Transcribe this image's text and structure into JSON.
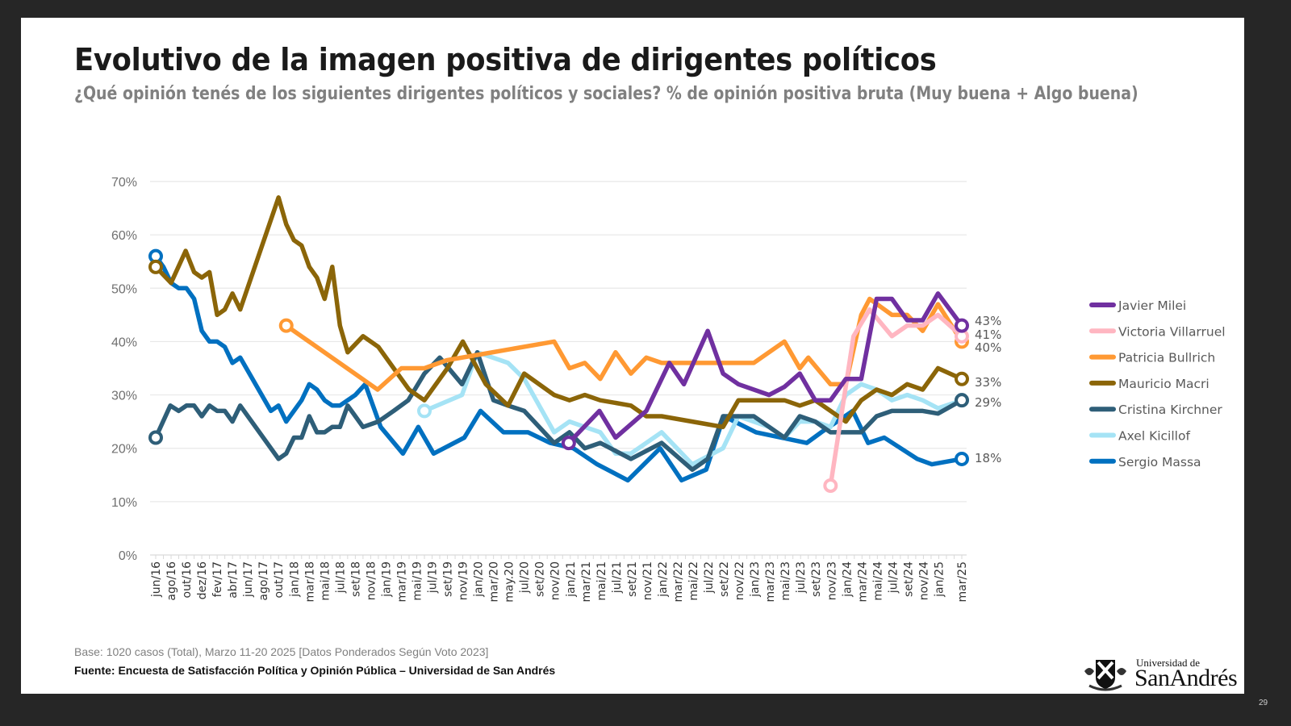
{
  "slide": {
    "title": "Evolutivo de la imagen positiva de dirigentes políticos",
    "subtitle": "¿Qué opinión tenés de los siguientes dirigentes políticos y sociales? % de opinión positiva bruta (Muy buena + Algo buena)",
    "base_note": "Base: 1020 casos (Total), Marzo 11-20 2025 [Datos Ponderados Según Voto 2023]",
    "source_note": "Fuente: Encuesta de Satisfacción Política y Opinión Pública – Universidad de San Andrés",
    "logo_small": "Universidad de",
    "logo_big": "SanAndrés",
    "page_number": "29"
  },
  "chart_data": {
    "type": "line",
    "title": "Evolutivo de la imagen positiva de dirigentes políticos",
    "xlabel": "",
    "ylabel": "",
    "ylim": [
      0,
      70
    ],
    "y_ticks": [
      "0%",
      "10%",
      "20%",
      "30%",
      "40%",
      "50%",
      "60%",
      "70%"
    ],
    "grid": true,
    "legend_position": "right",
    "x_unit": "months since jun/16",
    "x_range": [
      0,
      105
    ],
    "x_tick_labels": [
      "jun/16",
      "ago/16",
      "out/16",
      "dez/16",
      "fev/17",
      "abr/17",
      "jun/17",
      "ago/17",
      "out/17",
      "jan/18",
      "mar/18",
      "mai/18",
      "jul/18",
      "set/18",
      "nov/18",
      "jan/19",
      "mar/19",
      "mai/19",
      "jul/19",
      "set/19",
      "nov/19",
      "jan/20",
      "mar/20",
      "may.20",
      "jul/20",
      "set/20",
      "nov/20",
      "jan/21",
      "mar/21",
      "mai/21",
      "jul/21",
      "set/21",
      "nov/21",
      "jan/22",
      "mar/22",
      "mai/22",
      "jul/22",
      "set/22",
      "nov/22",
      "jan/23",
      "mar/23",
      "mai/23",
      "jul/23",
      "set/23",
      "nov/23",
      "jan/24",
      "mar/24",
      "mai/24",
      "jul/24",
      "set/24",
      "nov/24",
      "jan/25",
      "mar/25"
    ],
    "series": [
      {
        "name": "Javier Milei",
        "color": "#7030A0",
        "end_label": "43%",
        "points": [
          [
            53.8,
            21
          ],
          [
            57.8,
            27
          ],
          [
            59.9,
            22
          ],
          [
            63.9,
            27
          ],
          [
            66.9,
            36
          ],
          [
            68.8,
            32
          ],
          [
            71.9,
            42
          ],
          [
            73.9,
            34
          ],
          [
            75.9,
            32
          ],
          [
            79.9,
            30
          ],
          [
            81.9,
            31.5
          ],
          [
            83.9,
            34
          ],
          [
            85.9,
            29
          ],
          [
            87.9,
            29
          ],
          [
            89.9,
            33
          ],
          [
            91.9,
            33
          ],
          [
            93.9,
            48
          ],
          [
            95.9,
            48
          ],
          [
            97.9,
            44
          ],
          [
            99.9,
            44
          ],
          [
            101.9,
            49
          ],
          [
            105,
            43
          ]
        ]
      },
      {
        "name": "Victoria Villarruel",
        "color": "#FFB6C1",
        "end_label": "41%",
        "points": [
          [
            87.9,
            13
          ],
          [
            90.9,
            41
          ],
          [
            93.0,
            46
          ],
          [
            95.9,
            41
          ],
          [
            97.9,
            43
          ],
          [
            99.9,
            43
          ],
          [
            101.9,
            45
          ],
          [
            105,
            41
          ]
        ]
      },
      {
        "name": "Patricia Bullrich",
        "color": "#FF9933",
        "end_label": "40%",
        "points": [
          [
            17.0,
            43
          ],
          [
            28.9,
            31
          ],
          [
            32.0,
            35
          ],
          [
            35.0,
            35
          ],
          [
            37.9,
            36.5
          ],
          [
            41.9,
            37.5
          ],
          [
            51.9,
            40
          ],
          [
            53.9,
            35
          ],
          [
            55.9,
            36
          ],
          [
            57.9,
            33
          ],
          [
            59.9,
            38
          ],
          [
            61.9,
            34
          ],
          [
            63.9,
            37
          ],
          [
            65.9,
            36
          ],
          [
            69.9,
            36
          ],
          [
            73.9,
            36
          ],
          [
            77.9,
            36
          ],
          [
            81.9,
            40
          ],
          [
            83.9,
            35
          ],
          [
            85.0,
            37
          ],
          [
            87.9,
            32
          ],
          [
            89.9,
            32
          ],
          [
            91.9,
            45
          ],
          [
            93.0,
            48
          ],
          [
            95.9,
            45
          ],
          [
            97.9,
            45
          ],
          [
            99.9,
            42
          ],
          [
            101.9,
            47
          ],
          [
            105,
            40
          ]
        ]
      },
      {
        "name": "Mauricio Macri",
        "color": "#8B6508",
        "end_label": "33%",
        "points": [
          [
            0,
            54
          ],
          [
            2.0,
            51
          ],
          [
            3.9,
            57
          ],
          [
            5.0,
            53
          ],
          [
            6.0,
            52
          ],
          [
            7.0,
            53
          ],
          [
            8.0,
            45
          ],
          [
            9.0,
            46
          ],
          [
            10.0,
            49
          ],
          [
            11.0,
            46
          ],
          [
            16.0,
            67
          ],
          [
            17.0,
            62
          ],
          [
            18.0,
            59
          ],
          [
            19.0,
            58
          ],
          [
            20.0,
            54
          ],
          [
            21.0,
            52
          ],
          [
            22.0,
            48
          ],
          [
            23.0,
            54
          ],
          [
            24.0,
            43
          ],
          [
            25.0,
            38
          ],
          [
            27.0,
            41
          ],
          [
            29.0,
            39
          ],
          [
            31.0,
            35
          ],
          [
            33.0,
            31
          ],
          [
            35.0,
            29
          ],
          [
            38.0,
            35
          ],
          [
            40.0,
            40
          ],
          [
            43.0,
            32
          ],
          [
            45.9,
            28
          ],
          [
            48.0,
            34
          ],
          [
            51.9,
            30
          ],
          [
            53.9,
            29
          ],
          [
            55.9,
            30
          ],
          [
            57.9,
            29
          ],
          [
            61.9,
            28
          ],
          [
            63.9,
            26
          ],
          [
            65.9,
            26
          ],
          [
            71.9,
            24.5
          ],
          [
            73.9,
            24
          ],
          [
            75.9,
            29
          ],
          [
            79.9,
            29
          ],
          [
            81.9,
            29
          ],
          [
            83.9,
            28
          ],
          [
            85.9,
            29
          ],
          [
            87.9,
            27
          ],
          [
            89.9,
            25
          ],
          [
            91.9,
            29
          ],
          [
            93.9,
            31
          ],
          [
            95.9,
            30
          ],
          [
            97.9,
            32
          ],
          [
            99.9,
            31
          ],
          [
            101.9,
            35
          ],
          [
            105,
            33
          ]
        ]
      },
      {
        "name": "Cristina Kirchner",
        "color": "#2E5E78",
        "end_label": "",
        "points": [
          [
            0,
            22
          ],
          [
            1.9,
            28
          ],
          [
            3.0,
            27
          ],
          [
            4.0,
            28
          ],
          [
            5.0,
            28
          ],
          [
            6.0,
            26
          ],
          [
            7.0,
            28
          ],
          [
            8.0,
            27
          ],
          [
            9.0,
            27
          ],
          [
            10.0,
            25
          ],
          [
            11.0,
            28
          ],
          [
            16.0,
            18
          ],
          [
            17.0,
            19
          ],
          [
            18.0,
            22
          ],
          [
            19.0,
            22
          ],
          [
            20.0,
            26
          ],
          [
            21.0,
            23
          ],
          [
            22.0,
            23
          ],
          [
            23.0,
            24
          ],
          [
            24.0,
            24
          ],
          [
            25.0,
            28
          ],
          [
            26.0,
            26
          ],
          [
            27.0,
            24
          ],
          [
            29.0,
            25
          ],
          [
            31.0,
            27
          ],
          [
            32.9,
            29
          ],
          [
            35.0,
            34
          ],
          [
            37.0,
            37
          ],
          [
            39.9,
            32
          ],
          [
            41.9,
            38
          ],
          [
            44.0,
            29
          ],
          [
            45.9,
            28
          ],
          [
            48.0,
            27
          ],
          [
            51.9,
            21
          ],
          [
            53.9,
            23
          ],
          [
            55.9,
            20
          ],
          [
            57.9,
            21
          ],
          [
            61.9,
            18
          ],
          [
            65.9,
            21
          ],
          [
            69.9,
            16
          ],
          [
            71.9,
            18
          ],
          [
            73.9,
            26
          ],
          [
            77.9,
            26
          ],
          [
            81.9,
            22
          ],
          [
            83.9,
            26
          ],
          [
            85.9,
            25
          ],
          [
            87.9,
            23
          ],
          [
            89.9,
            23
          ],
          [
            91.9,
            23
          ],
          [
            93.9,
            26
          ],
          [
            95.9,
            27
          ],
          [
            97.9,
            27
          ],
          [
            99.9,
            27
          ],
          [
            101.9,
            26.5
          ],
          [
            105,
            29
          ]
        ]
      },
      {
        "name": "Axel Kicillof",
        "color": "#A5E3F5",
        "end_label": "29%",
        "points": [
          [
            35.0,
            27
          ],
          [
            39.9,
            30
          ],
          [
            41.9,
            38
          ],
          [
            45.9,
            36
          ],
          [
            48.0,
            33
          ],
          [
            51.9,
            23
          ],
          [
            53.9,
            25
          ],
          [
            55.9,
            24
          ],
          [
            57.9,
            23
          ],
          [
            59.9,
            19
          ],
          [
            61.9,
            19
          ],
          [
            65.9,
            23
          ],
          [
            69.9,
            17
          ],
          [
            73.9,
            20
          ],
          [
            75.9,
            26
          ],
          [
            79.9,
            24
          ],
          [
            81.9,
            22
          ],
          [
            83.9,
            25
          ],
          [
            85.9,
            25
          ],
          [
            87.9,
            24
          ],
          [
            89.9,
            30
          ],
          [
            91.9,
            32
          ],
          [
            93.9,
            31
          ],
          [
            95.9,
            29
          ],
          [
            97.9,
            30
          ],
          [
            99.9,
            29
          ],
          [
            101.9,
            27.5
          ],
          [
            105,
            29
          ]
        ]
      },
      {
        "name": "Sergio Massa",
        "color": "#0070C0",
        "end_label": "18%",
        "points": [
          [
            0,
            56
          ],
          [
            1.0,
            54
          ],
          [
            2.0,
            51
          ],
          [
            3.0,
            50
          ],
          [
            4.0,
            50
          ],
          [
            5.0,
            48
          ],
          [
            6.0,
            42
          ],
          [
            7.0,
            40
          ],
          [
            8.0,
            40
          ],
          [
            9.0,
            39
          ],
          [
            10.0,
            36
          ],
          [
            11.0,
            37
          ],
          [
            15.0,
            27
          ],
          [
            16.0,
            28
          ],
          [
            17.0,
            25
          ],
          [
            19.0,
            29
          ],
          [
            20.0,
            32
          ],
          [
            21.0,
            31
          ],
          [
            22.0,
            29
          ],
          [
            23.0,
            28
          ],
          [
            24.0,
            28
          ],
          [
            26.0,
            30
          ],
          [
            27.3,
            32
          ],
          [
            29.3,
            24
          ],
          [
            32.2,
            19
          ],
          [
            34.2,
            24
          ],
          [
            36.2,
            19
          ],
          [
            40.2,
            22
          ],
          [
            42.3,
            27
          ],
          [
            45.3,
            23
          ],
          [
            48.5,
            23
          ],
          [
            51.4,
            21
          ],
          [
            54.4,
            20
          ],
          [
            57.5,
            17
          ],
          [
            61.5,
            14
          ],
          [
            65.7,
            20
          ],
          [
            68.5,
            14
          ],
          [
            71.7,
            16
          ],
          [
            74.0,
            26
          ],
          [
            78.2,
            23
          ],
          [
            84.8,
            21
          ],
          [
            86.7,
            23
          ],
          [
            90.8,
            27
          ],
          [
            92.8,
            21
          ],
          [
            94.9,
            22
          ],
          [
            99.2,
            18
          ],
          [
            101.1,
            17
          ],
          [
            105,
            18
          ]
        ]
      }
    ]
  }
}
